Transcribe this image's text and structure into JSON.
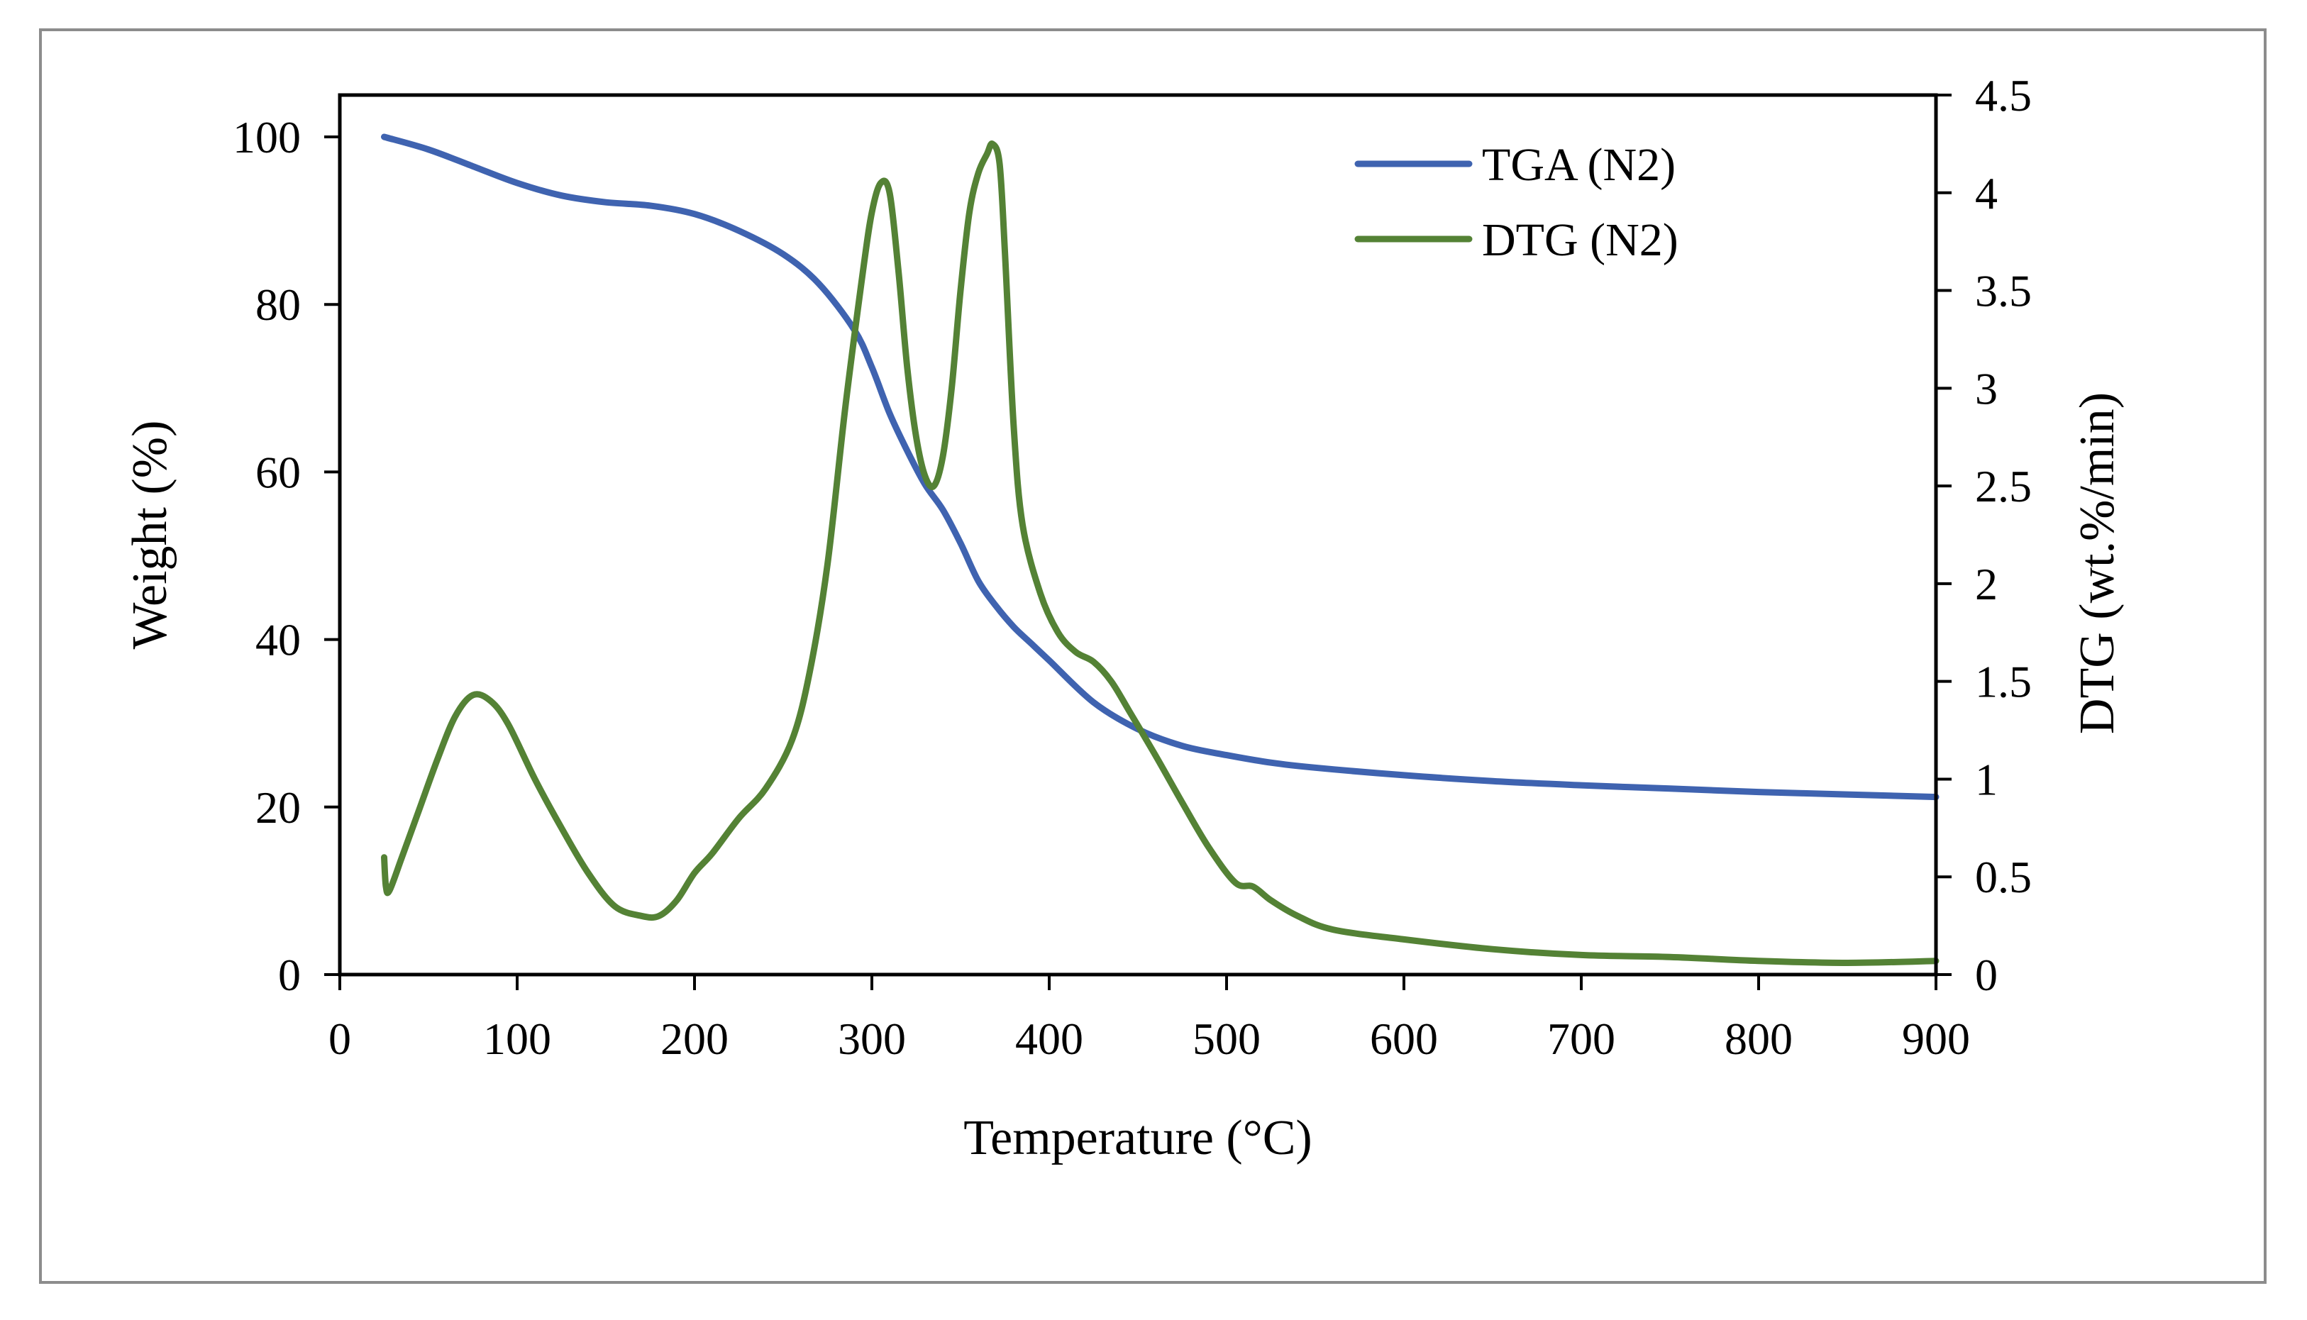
{
  "chart_data": {
    "type": "line",
    "title": "",
    "xlabel": "Temperature (°C)",
    "ylabel": "Weight (%)",
    "y2label": "DTG (wt.%/min)",
    "xlim": [
      0,
      900
    ],
    "ylim": [
      0,
      105
    ],
    "y2lim": [
      0,
      4.5
    ],
    "xticks": [
      "0",
      "100",
      "200",
      "300",
      "400",
      "500",
      "600",
      "700",
      "800",
      "900"
    ],
    "yticks": [
      "0",
      "20",
      "40",
      "60",
      "80",
      "100"
    ],
    "y2ticks": [
      "0",
      "0.5",
      "1",
      "1.5",
      "2",
      "2.5",
      "3",
      "3.5",
      "4",
      "4.5"
    ],
    "grid": false,
    "legend": "top-right",
    "series": [
      {
        "name": "TGA (N2)",
        "axis": "left",
        "color": "#3f63b0",
        "x": [
          25,
          50,
          75,
          100,
          125,
          150,
          175,
          200,
          225,
          250,
          270,
          290,
          300,
          310,
          320,
          330,
          340,
          350,
          360,
          370,
          380,
          390,
          400,
          425,
          450,
          475,
          500,
          525,
          550,
          600,
          650,
          700,
          750,
          800,
          850,
          900
        ],
        "y": [
          100,
          98.5,
          96.5,
          94.5,
          93,
          92.2,
          91.8,
          90.8,
          88.8,
          86,
          82.5,
          77,
          72.5,
          67,
          62.5,
          58.5,
          55.5,
          51.5,
          47,
          44,
          41.5,
          39.5,
          37.5,
          32.5,
          29.3,
          27.3,
          26.2,
          25.3,
          24.7,
          23.8,
          23.1,
          22.6,
          22.2,
          21.8,
          21.5,
          21.2
        ]
      },
      {
        "name": "DTG (N2)",
        "axis": "right",
        "color": "#548235",
        "x": [
          25,
          26,
          28,
          35,
          45,
          55,
          65,
          75,
          85,
          95,
          110,
          125,
          140,
          155,
          170,
          180,
          190,
          200,
          210,
          225,
          240,
          255,
          265,
          275,
          285,
          295,
          300,
          305,
          310,
          315,
          320,
          325,
          330,
          335,
          340,
          345,
          350,
          355,
          360,
          365,
          368,
          372,
          375,
          380,
          385,
          395,
          405,
          415,
          425,
          435,
          445,
          460,
          475,
          490,
          505,
          515,
          525,
          540,
          560,
          600,
          650,
          700,
          750,
          800,
          850,
          900
        ],
        "y": [
          0.6,
          0.45,
          0.43,
          0.6,
          0.85,
          1.1,
          1.32,
          1.43,
          1.4,
          1.28,
          1.0,
          0.75,
          0.52,
          0.35,
          0.3,
          0.3,
          0.38,
          0.52,
          0.62,
          0.8,
          0.95,
          1.2,
          1.55,
          2.1,
          2.9,
          3.6,
          3.9,
          4.05,
          4.0,
          3.6,
          3.1,
          2.75,
          2.55,
          2.5,
          2.65,
          3.0,
          3.5,
          3.9,
          4.1,
          4.2,
          4.25,
          4.15,
          3.7,
          2.8,
          2.3,
          1.95,
          1.75,
          1.65,
          1.6,
          1.5,
          1.35,
          1.12,
          0.88,
          0.65,
          0.47,
          0.45,
          0.38,
          0.3,
          0.23,
          0.18,
          0.13,
          0.1,
          0.09,
          0.07,
          0.06,
          0.07
        ]
      }
    ]
  },
  "legend": {
    "items": [
      {
        "label": "TGA (N2)",
        "color": "#3f63b0"
      },
      {
        "label": "DTG (N2)",
        "color": "#548235"
      }
    ]
  }
}
